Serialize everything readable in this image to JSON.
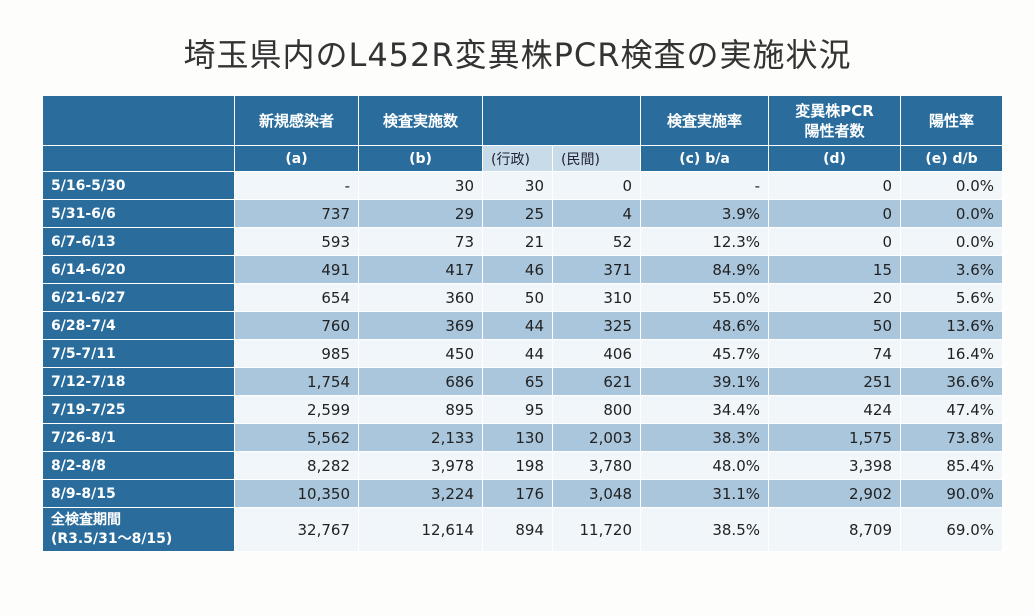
{
  "title": "埼玉県内のL452R変異株PCR検査の実施状況",
  "headers": {
    "new_cases": "新規感染者",
    "tests": "検査実施数",
    "test_rate": "検査実施率",
    "variant_line1": "変異株PCR",
    "variant_line2": "陽性者数",
    "positivity": "陽性率"
  },
  "subheaders": {
    "a": "(a)",
    "b": "(b)",
    "gov": "(行政)",
    "private": "(民間)",
    "c": "(c) b/a",
    "d": "(d)",
    "e": "(e) d/b"
  },
  "rows": [
    {
      "period": "5/16-5/30",
      "a": "-",
      "b": "30",
      "gov": "30",
      "pri": "0",
      "c": "-",
      "d": "0",
      "e": "0.0%"
    },
    {
      "period": "5/31-6/6",
      "a": "737",
      "b": "29",
      "gov": "25",
      "pri": "4",
      "c": "3.9%",
      "d": "0",
      "e": "0.0%"
    },
    {
      "period": "6/7-6/13",
      "a": "593",
      "b": "73",
      "gov": "21",
      "pri": "52",
      "c": "12.3%",
      "d": "0",
      "e": "0.0%"
    },
    {
      "period": "6/14-6/20",
      "a": "491",
      "b": "417",
      "gov": "46",
      "pri": "371",
      "c": "84.9%",
      "d": "15",
      "e": "3.6%"
    },
    {
      "period": "6/21-6/27",
      "a": "654",
      "b": "360",
      "gov": "50",
      "pri": "310",
      "c": "55.0%",
      "d": "20",
      "e": "5.6%"
    },
    {
      "period": "6/28-7/4",
      "a": "760",
      "b": "369",
      "gov": "44",
      "pri": "325",
      "c": "48.6%",
      "d": "50",
      "e": "13.6%"
    },
    {
      "period": "7/5-7/11",
      "a": "985",
      "b": "450",
      "gov": "44",
      "pri": "406",
      "c": "45.7%",
      "d": "74",
      "e": "16.4%"
    },
    {
      "period": "7/12-7/18",
      "a": "1,754",
      "b": "686",
      "gov": "65",
      "pri": "621",
      "c": "39.1%",
      "d": "251",
      "e": "36.6%"
    },
    {
      "period": "7/19-7/25",
      "a": "2,599",
      "b": "895",
      "gov": "95",
      "pri": "800",
      "c": "34.4%",
      "d": "424",
      "e": "47.4%"
    },
    {
      "period": "7/26-8/1",
      "a": "5,562",
      "b": "2,133",
      "gov": "130",
      "pri": "2,003",
      "c": "38.3%",
      "d": "1,575",
      "e": "73.8%"
    },
    {
      "period": "8/2-8/8",
      "a": "8,282",
      "b": "3,978",
      "gov": "198",
      "pri": "3,780",
      "c": "48.0%",
      "d": "3,398",
      "e": "85.4%"
    },
    {
      "period": "8/9-8/15",
      "a": "10,350",
      "b": "3,224",
      "gov": "176",
      "pri": "3,048",
      "c": "31.1%",
      "d": "2,902",
      "e": "90.0%"
    }
  ],
  "total": {
    "label_line1": "全検査期間",
    "label_line2": "(R3.5/31～8/15)",
    "a": "32,767",
    "b": "12,614",
    "gov": "894",
    "pri": "11,720",
    "c": "38.5%",
    "d": "8,709",
    "e": "69.0%"
  }
}
